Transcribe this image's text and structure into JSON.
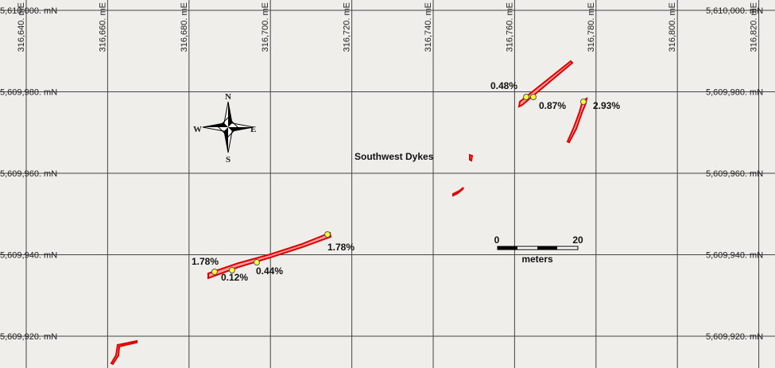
{
  "map": {
    "title": "Southwest Dykes",
    "grid": {
      "eastings": [
        "316,640. mE",
        "316,660. mE",
        "316,680. mE",
        "316,700. mE",
        "316,720. mE",
        "316,740. mE",
        "316,760. mE",
        "316,780. mE",
        "316,800. mE",
        "316,820. mE"
      ],
      "northings": [
        "5,610,000. mN",
        "5,609,980. mN",
        "5,609,960. mN",
        "5,609,940. mN",
        "5,609,920. mN"
      ]
    },
    "compass": {
      "north": "N",
      "south": "S",
      "east": "E",
      "west": "W"
    },
    "scale_bar": {
      "start": "0",
      "end": "20",
      "unit": "meters"
    },
    "samples": [
      "0.48%",
      "0.87%",
      "2.93%",
      "1.78%",
      "0.12%",
      "0.44%",
      "1.78%"
    ]
  }
}
